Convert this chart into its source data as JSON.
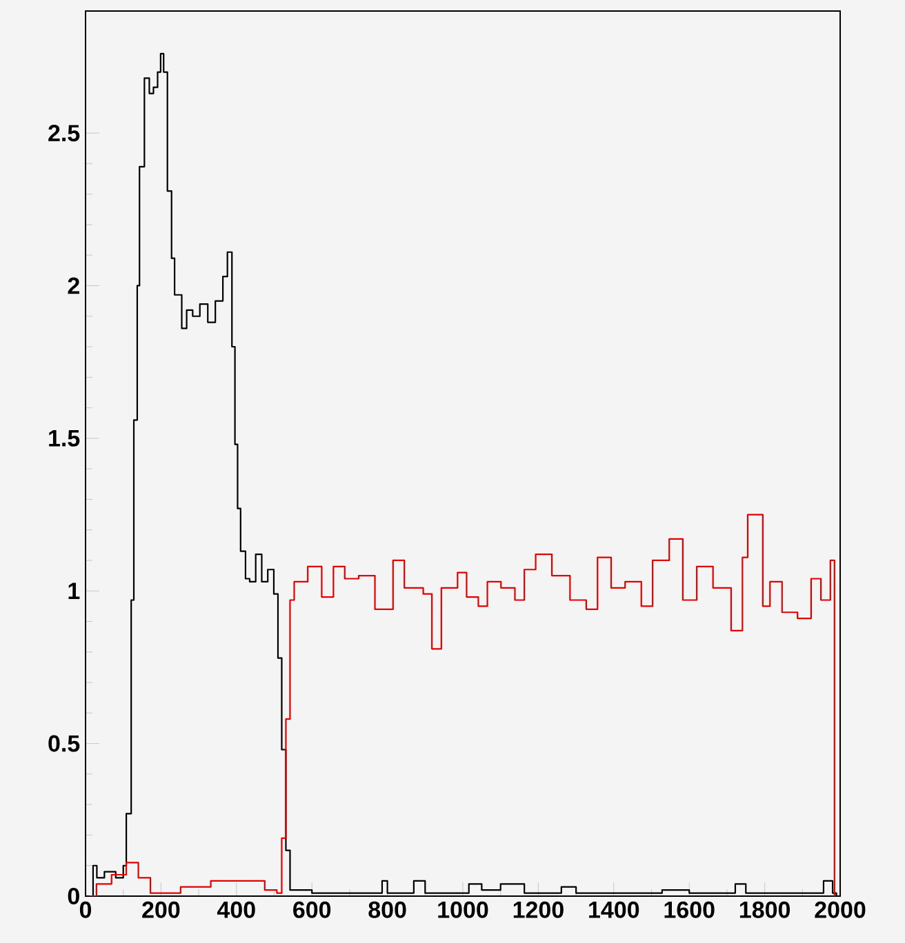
{
  "chart_data": {
    "type": "step",
    "xlim": [
      0,
      2000
    ],
    "ylim": [
      0,
      2.9
    ],
    "xticks": [
      0,
      200,
      400,
      600,
      800,
      1000,
      1200,
      1400,
      1600,
      1800,
      2000
    ],
    "yticks": [
      0,
      0.5,
      1,
      1.5,
      2,
      2.5
    ],
    "grid": false,
    "marker": "none",
    "line_style": "solid",
    "series": [
      {
        "color": "#000000",
        "x": [
          10,
          20,
          30,
          50,
          80,
          100,
          108,
          121,
          128,
          137,
          143,
          156,
          169,
          180,
          191,
          199,
          207,
          217,
          228,
          236,
          255,
          268,
          284,
          303,
          324,
          344,
          364,
          376,
          388,
          396,
          403,
          411,
          424,
          435,
          451,
          467,
          483,
          499,
          510,
          520,
          531,
          542,
          600,
          700,
          786,
          800,
          870,
          900,
          1016,
          1050,
          1100,
          1163,
          1200,
          1261,
          1300,
          1400,
          1450,
          1528,
          1600,
          1722,
          1750,
          1850,
          1956,
          1980,
          1990
        ],
        "values": [
          0,
          0.1,
          0.06,
          0.08,
          0.06,
          0.1,
          0.27,
          0.97,
          1.56,
          2.0,
          2.39,
          2.68,
          2.63,
          2.65,
          2.7,
          2.76,
          2.7,
          2.31,
          2.09,
          1.97,
          1.86,
          1.92,
          1.9,
          1.94,
          1.88,
          1.95,
          2.03,
          2.11,
          1.8,
          1.48,
          1.27,
          1.13,
          1.04,
          1.03,
          1.12,
          1.03,
          1.07,
          0.99,
          0.78,
          0.48,
          0.15,
          0.02,
          0.01,
          0.01,
          0.05,
          0.01,
          0.05,
          0.01,
          0.04,
          0.02,
          0.04,
          0.01,
          0.01,
          0.03,
          0.01,
          0.01,
          0.01,
          0.02,
          0.01,
          0.04,
          0.01,
          0.01,
          0.05,
          0.01,
          0
        ]
      },
      {
        "color": "#e00000",
        "x": [
          10,
          29,
          69,
          108,
          140,
          172,
          252,
          332,
          411,
          475,
          507,
          520,
          531,
          542,
          553,
          589,
          626,
          657,
          687,
          724,
          767,
          815,
          845,
          895,
          918,
          943,
          986,
          1010,
          1041,
          1065,
          1101,
          1138,
          1163,
          1193,
          1236,
          1284,
          1327,
          1357,
          1393,
          1430,
          1473,
          1503,
          1547,
          1583,
          1620,
          1663,
          1711,
          1741,
          1755,
          1795,
          1814,
          1846,
          1887,
          1923,
          1949,
          1974,
          1985
        ],
        "values": [
          0,
          0.04,
          0.07,
          0.11,
          0.06,
          0.01,
          0.03,
          0.05,
          0.05,
          0.02,
          0.01,
          0.19,
          0.58,
          0.97,
          1.03,
          1.08,
          0.98,
          1.08,
          1.04,
          1.05,
          0.94,
          1.1,
          1.01,
          0.99,
          0.81,
          1.01,
          1.06,
          0.98,
          0.95,
          1.03,
          1.01,
          0.97,
          1.07,
          1.12,
          1.05,
          0.97,
          0.94,
          1.11,
          1.01,
          1.03,
          0.95,
          1.1,
          1.17,
          0.97,
          1.08,
          1.01,
          0.87,
          1.11,
          1.25,
          0.95,
          1.03,
          0.93,
          0.91,
          1.04,
          0.97,
          1.1,
          0
        ]
      }
    ]
  }
}
